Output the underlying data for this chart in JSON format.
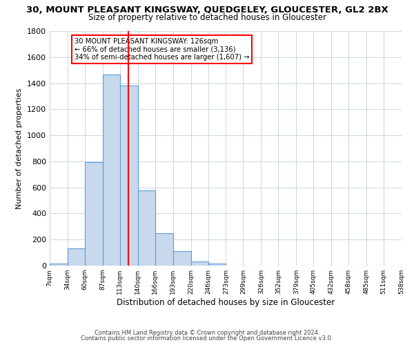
{
  "title": "30, MOUNT PLEASANT KINGSWAY, QUEDGELEY, GLOUCESTER, GL2 2BX",
  "subtitle": "Size of property relative to detached houses in Gloucester",
  "xlabel": "Distribution of detached houses by size in Gloucester",
  "ylabel": "Number of detached properties",
  "bar_values": [
    15,
    135,
    795,
    1465,
    1380,
    575,
    250,
    110,
    30,
    15,
    0,
    0,
    0,
    0,
    0,
    0,
    0,
    0,
    0,
    0
  ],
  "bin_edges": [
    7,
    34,
    60,
    87,
    113,
    140,
    166,
    193,
    220,
    246,
    273,
    299,
    326,
    352,
    379,
    405,
    432,
    458,
    485,
    511,
    538
  ],
  "tick_labels": [
    "7sqm",
    "34sqm",
    "60sqm",
    "87sqm",
    "113sqm",
    "140sqm",
    "166sqm",
    "193sqm",
    "220sqm",
    "246sqm",
    "273sqm",
    "299sqm",
    "326sqm",
    "352sqm",
    "379sqm",
    "405sqm",
    "432sqm",
    "458sqm",
    "485sqm",
    "511sqm",
    "538sqm"
  ],
  "bar_color": "#c8d9ee",
  "bar_edge_color": "#5b9bd5",
  "property_line_x": 126,
  "property_line_color": "red",
  "annotation_title": "30 MOUNT PLEASANT KINGSWAY: 126sqm",
  "annotation_line1": "← 66% of detached houses are smaller (3,136)",
  "annotation_line2": "34% of semi-detached houses are larger (1,607) →",
  "ylim": [
    0,
    1800
  ],
  "yticks": [
    0,
    200,
    400,
    600,
    800,
    1000,
    1200,
    1400,
    1600,
    1800
  ],
  "footer1": "Contains HM Land Registry data © Crown copyright and database right 2024.",
  "footer2": "Contains public sector information licensed under the Open Government Licence v3.0.",
  "background_color": "#ffffff",
  "grid_color": "#c0d0e0",
  "title_fontsize": 9.5,
  "subtitle_fontsize": 8.5,
  "figsize": [
    6.0,
    5.0
  ],
  "dpi": 100
}
